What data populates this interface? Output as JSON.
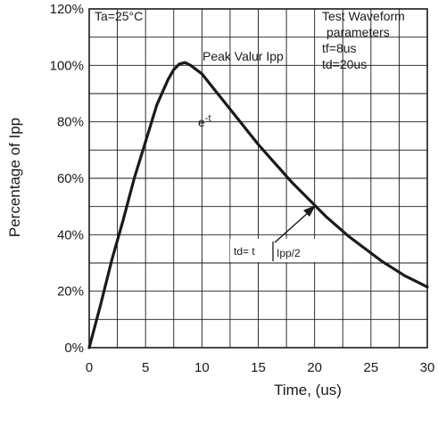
{
  "chart_data": {
    "type": "line",
    "xlabel": "Time, (us)",
    "ylabel": "Percentage of Ipp",
    "xlim": [
      0,
      30
    ],
    "ylim": [
      0,
      120
    ],
    "x_ticks": [
      "0",
      "5",
      "10",
      "15",
      "20",
      "25",
      "30"
    ],
    "y_ticks": [
      "0%",
      "20%",
      "40%",
      "60%",
      "80%",
      "100%",
      "120%"
    ],
    "grid": true,
    "series": [
      {
        "x": [
          0,
          1,
          2,
          3,
          4,
          5,
          6,
          7,
          7.5,
          8,
          8.5,
          9,
          10,
          11,
          12,
          13,
          14,
          15,
          16,
          17,
          18,
          19,
          20,
          21,
          22,
          23,
          24,
          25,
          26,
          27,
          28,
          29,
          30
        ],
        "y": [
          0,
          15,
          31,
          45,
          60,
          73,
          86,
          95,
          98.5,
          100.5,
          101,
          100,
          97,
          92,
          87,
          82,
          77,
          72,
          67.5,
          63,
          58.5,
          54.5,
          50.5,
          46.5,
          43,
          39.5,
          36.5,
          33.5,
          30.5,
          28,
          25.5,
          23.5,
          21.5
        ]
      }
    ],
    "annotations": {
      "condition": "Ta=25°C",
      "peak_label": "Peak Valur Ipp",
      "decay_base": "e",
      "decay_exp": "-t",
      "td_prefix": "td= t",
      "td_suffix": "Ipp/2",
      "waveform_title": "Test Waveform",
      "waveform_line2": "parameters",
      "tf": "tf=8us",
      "td": "td=20us"
    }
  }
}
